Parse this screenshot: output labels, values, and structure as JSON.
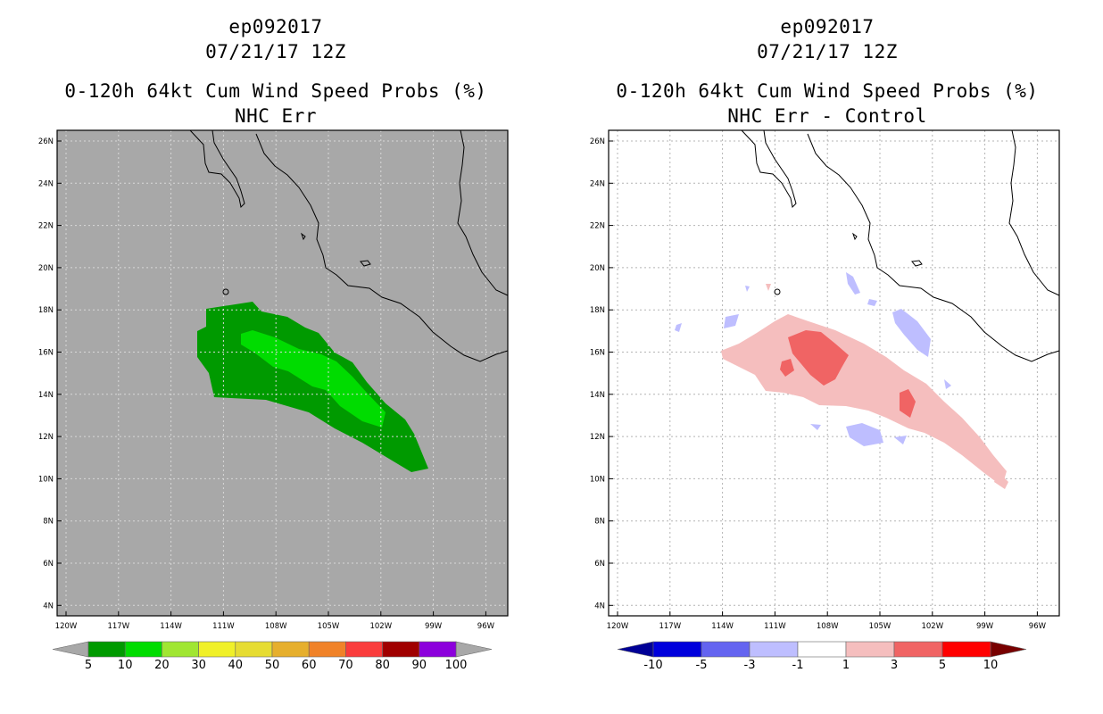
{
  "left": {
    "storm_id": "ep092017",
    "datetime": "07/21/17 12Z",
    "product": "0-120h 64kt Cum Wind Speed Probs (%)",
    "subtitle": "NHC Err",
    "background_color": "#a8a8a8",
    "colorbar": {
      "labels": [
        "5",
        "10",
        "20",
        "30",
        "40",
        "50",
        "60",
        "70",
        "80",
        "90",
        "100"
      ],
      "colors": [
        "#009a00",
        "#00dc00",
        "#a0e632",
        "#f0f028",
        "#e6dc32",
        "#e6af2d",
        "#f08228",
        "#fa3c3c",
        "#a00000",
        "#8c00dc"
      ],
      "low_end_color": "#a8a8a8",
      "high_end_color": "#a8a8a8"
    }
  },
  "right": {
    "storm_id": "ep092017",
    "datetime": "07/21/17 12Z",
    "product": "0-120h 64kt Cum Wind Speed Probs (%)",
    "subtitle": "NHC Err - Control",
    "background_color": "#ffffff",
    "colorbar": {
      "labels": [
        "-10",
        "-5",
        "-3",
        "-1",
        "1",
        "3",
        "5",
        "10"
      ],
      "colors": [
        "#0000dc",
        "#6464f0",
        "#bebeff",
        "#ffffff",
        "#f5bebe",
        "#f06464",
        "#ff0000"
      ],
      "low_end_color": "#000096",
      "high_end_color": "#780000"
    }
  },
  "axes": {
    "x_labels": [
      "120W",
      "117W",
      "114W",
      "111W",
      "108W",
      "105W",
      "102W",
      "99W",
      "96W"
    ],
    "y_labels": [
      "26N",
      "24N",
      "22N",
      "20N",
      "18N",
      "16N",
      "14N",
      "12N",
      "10N",
      "8N",
      "6N",
      "4N"
    ]
  }
}
